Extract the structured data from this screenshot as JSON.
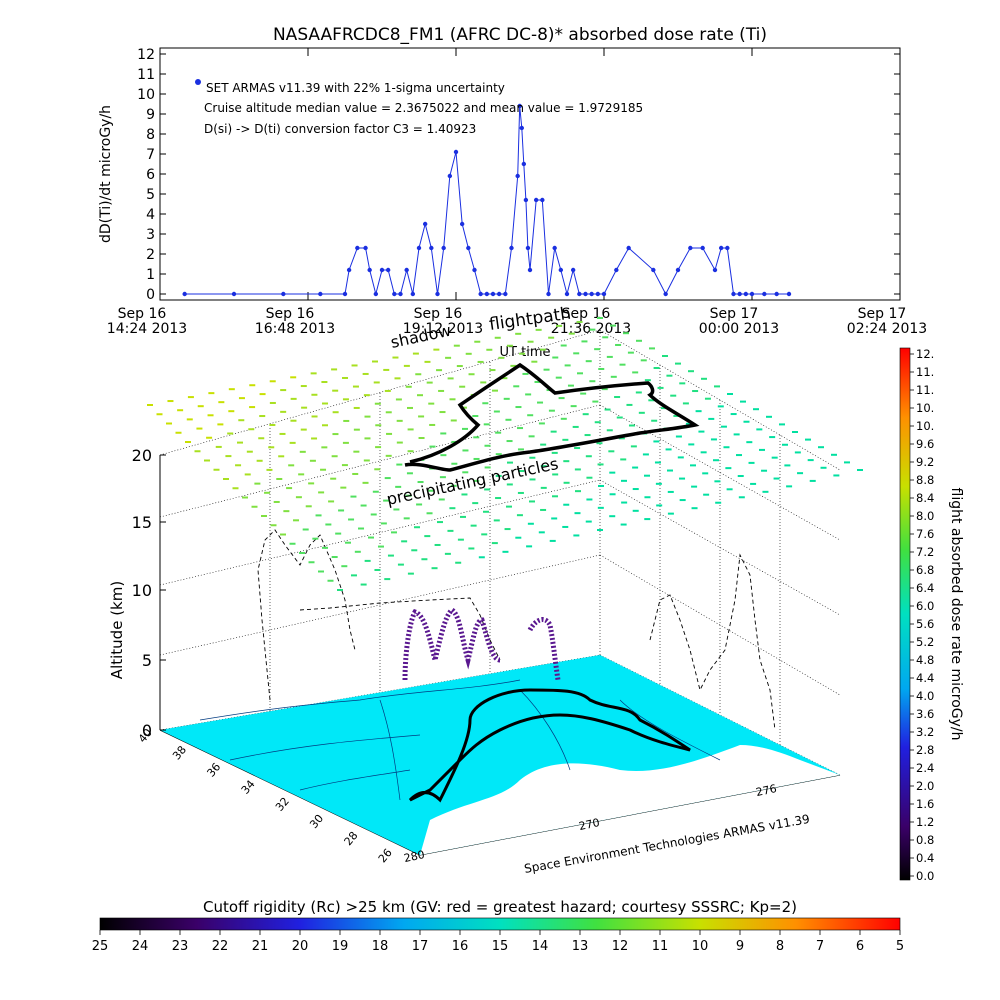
{
  "chart_data": [
    {
      "type": "line",
      "title": "NASAAFRCDC8_FM1 (AFRC DC-8)* absorbed dose rate (Ti)",
      "ylabel": "dD(Ti)/dt microGy/h",
      "xlabel": "UT time",
      "ylim": [
        0,
        12
      ],
      "yticks": [
        "0",
        "1",
        "2",
        "3",
        "4",
        "5",
        "6",
        "7",
        "8",
        "9",
        "10",
        "11",
        "12"
      ],
      "xlim": [
        "2013-09-16 14:24",
        "2013-09-17 02:24"
      ],
      "xticks": [
        {
          "top": "Sep 16",
          "bottom": "14:24 2013"
        },
        {
          "top": "Sep 16",
          "bottom": "16:48 2013"
        },
        {
          "top": "Sep 16",
          "bottom": "19:12 2013"
        },
        {
          "top": "Sep 16",
          "bottom": "21:36 2013"
        },
        {
          "top": "Sep 17",
          "bottom": "00:00 2013"
        },
        {
          "top": "Sep 17",
          "bottom": "02:24 2013"
        }
      ],
      "annotations": [
        "SET ARMAS v11.39 with 22% 1-sigma uncertainty",
        "Cruise altitude median value = 2.3675022 and mean value = 1.9729185",
        "D(si) -> D(ti) conversion factor C3 = 1.40923"
      ],
      "series_color": "#1a2fe0",
      "series": [
        {
          "x": [
            "2013-09-16 14:48",
            "2013-09-16 15:36",
            "2013-09-16 16:24",
            "2013-09-16 17:00",
            "2013-09-16 17:24",
            "2013-09-16 17:28",
            "2013-09-16 17:36",
            "2013-09-16 17:44",
            "2013-09-16 17:48",
            "2013-09-16 17:54",
            "2013-09-16 18:00",
            "2013-09-16 18:06",
            "2013-09-16 18:12",
            "2013-09-16 18:18",
            "2013-09-16 18:24",
            "2013-09-16 18:30",
            "2013-09-16 18:36",
            "2013-09-16 18:42",
            "2013-09-16 18:48",
            "2013-09-16 18:54",
            "2013-09-16 19:00",
            "2013-09-16 19:06",
            "2013-09-16 19:12",
            "2013-09-16 19:18",
            "2013-09-16 19:24",
            "2013-09-16 19:30",
            "2013-09-16 19:36",
            "2013-09-16 19:42",
            "2013-09-16 19:48",
            "2013-09-16 19:54",
            "2013-09-16 20:00",
            "2013-09-16 20:06",
            "2013-09-16 20:12",
            "2013-09-16 20:14",
            "2013-09-16 20:16",
            "2013-09-16 20:18",
            "2013-09-16 20:20",
            "2013-09-16 20:22",
            "2013-09-16 20:24",
            "2013-09-16 20:30",
            "2013-09-16 20:36",
            "2013-09-16 20:42",
            "2013-09-16 20:48",
            "2013-09-16 20:54",
            "2013-09-16 21:00",
            "2013-09-16 21:06",
            "2013-09-16 21:12",
            "2013-09-16 21:18",
            "2013-09-16 21:24",
            "2013-09-16 21:30",
            "2013-09-16 21:36",
            "2013-09-16 21:48",
            "2013-09-16 22:00",
            "2013-09-16 22:24",
            "2013-09-16 22:36",
            "2013-09-16 22:48",
            "2013-09-16 23:00",
            "2013-09-16 23:12",
            "2013-09-16 23:24",
            "2013-09-16 23:30",
            "2013-09-16 23:36",
            "2013-09-16 23:42",
            "2013-09-16 23:48",
            "2013-09-16 23:54",
            "2013-09-17 00:00",
            "2013-09-17 00:12",
            "2013-09-17 00:24",
            "2013-09-17 00:36"
          ],
          "y": [
            0,
            0,
            0,
            0,
            0,
            1.2,
            2.3,
            2.3,
            1.2,
            0,
            1.2,
            1.2,
            0,
            0,
            1.2,
            0,
            2.3,
            3.5,
            2.3,
            0,
            2.3,
            5.9,
            7.1,
            3.5,
            2.3,
            1.2,
            0,
            0,
            0,
            0,
            0,
            2.3,
            5.9,
            9.4,
            8.3,
            6.5,
            4.7,
            2.3,
            1.2,
            4.7,
            4.7,
            0,
            2.3,
            1.2,
            0,
            1.2,
            0,
            0,
            0,
            0,
            0,
            1.2,
            2.3,
            1.2,
            0,
            1.2,
            2.3,
            2.3,
            1.2,
            2.3,
            2.3,
            0,
            0,
            0,
            0,
            0,
            0,
            0
          ]
        }
      ]
    },
    {
      "type": "scatter",
      "title": "",
      "xlabel": "",
      "ylabel": "Altitude (km)",
      "zticks": [
        "0",
        "5",
        "10",
        "15",
        "20"
      ],
      "lat_ticks": [
        "40",
        "38",
        "36",
        "34",
        "32",
        "30",
        "28",
        "26"
      ],
      "lon_ticks": [
        "280",
        "270",
        "276"
      ],
      "annotations": [
        "shadow",
        "flightpath",
        "precipitating particles"
      ],
      "credit": "Space Environment Technologies ARMAS v11.39",
      "colorbar": {
        "label": "flight absorbed dose rate microGy/h",
        "ticks": [
          "12.",
          "11.",
          "11.",
          "10.",
          "10.",
          "9.6",
          "9.2",
          "8.8",
          "8.4",
          "8.0",
          "7.6",
          "7.2",
          "6.8",
          "6.4",
          "6.0",
          "5.6",
          "5.2",
          "4.8",
          "4.4",
          "4.0",
          "3.6",
          "3.2",
          "2.8",
          "2.4",
          "2.0",
          "1.6",
          "1.2",
          "0.8",
          "0.4",
          "0.0"
        ]
      },
      "rigidity_bar": {
        "label": "Cutoff rigidity (Rc) >25 km (GV: red = greatest hazard; courtesy SSSRC; Kp=2)",
        "ticks": [
          "25",
          "24",
          "23",
          "22",
          "21",
          "20",
          "19",
          "18",
          "17",
          "16",
          "15",
          "14",
          "13",
          "12",
          "11",
          "10",
          "9",
          "8",
          "7",
          "6",
          "5"
        ]
      }
    }
  ]
}
